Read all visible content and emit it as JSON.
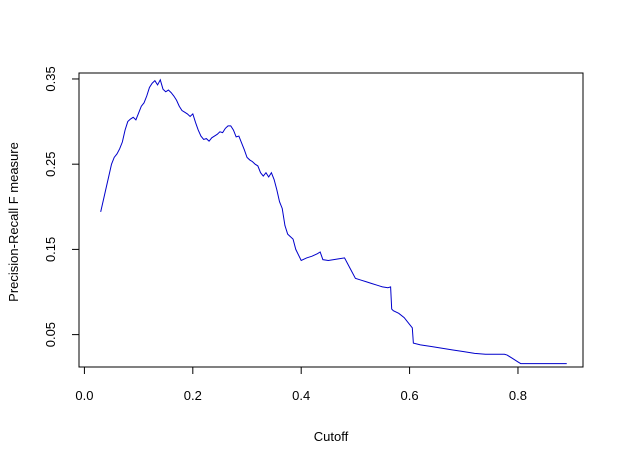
{
  "chart_data": {
    "type": "line",
    "title": "",
    "xlabel": "Cutoff",
    "ylabel": "Precision-Recall F measure",
    "xlim": [
      -0.01,
      0.92
    ],
    "ylim": [
      0.012,
      0.357
    ],
    "x_ticks": [
      {
        "value": 0.0,
        "label": "0.0"
      },
      {
        "value": 0.2,
        "label": "0.2"
      },
      {
        "value": 0.4,
        "label": "0.4"
      },
      {
        "value": 0.6,
        "label": "0.6"
      },
      {
        "value": 0.8,
        "label": "0.8"
      }
    ],
    "y_ticks": [
      {
        "value": 0.05,
        "label": "0.05"
      },
      {
        "value": 0.15,
        "label": "0.15"
      },
      {
        "value": 0.25,
        "label": "0.25"
      },
      {
        "value": 0.35,
        "label": "0.35"
      }
    ],
    "grid": false,
    "series": [
      {
        "color": "#0000cc",
        "x": [
          0.03,
          0.035,
          0.04,
          0.045,
          0.05,
          0.055,
          0.06,
          0.065,
          0.07,
          0.075,
          0.08,
          0.085,
          0.09,
          0.095,
          0.1,
          0.105,
          0.11,
          0.115,
          0.12,
          0.125,
          0.13,
          0.135,
          0.14,
          0.145,
          0.15,
          0.155,
          0.16,
          0.165,
          0.17,
          0.175,
          0.18,
          0.185,
          0.19,
          0.195,
          0.2,
          0.205,
          0.21,
          0.215,
          0.22,
          0.225,
          0.23,
          0.235,
          0.24,
          0.245,
          0.25,
          0.255,
          0.26,
          0.265,
          0.27,
          0.275,
          0.28,
          0.285,
          0.29,
          0.295,
          0.3,
          0.305,
          0.31,
          0.315,
          0.32,
          0.325,
          0.33,
          0.335,
          0.34,
          0.345,
          0.35,
          0.355,
          0.36,
          0.365,
          0.37,
          0.375,
          0.38,
          0.385,
          0.39,
          0.4,
          0.41,
          0.42,
          0.43,
          0.435,
          0.44,
          0.45,
          0.46,
          0.47,
          0.48,
          0.49,
          0.5,
          0.51,
          0.52,
          0.53,
          0.54,
          0.55,
          0.56,
          0.565,
          0.567,
          0.57,
          0.58,
          0.59,
          0.6,
          0.605,
          0.607,
          0.62,
          0.64,
          0.66,
          0.68,
          0.7,
          0.72,
          0.74,
          0.76,
          0.775,
          0.78,
          0.79,
          0.8,
          0.805,
          0.82,
          0.84,
          0.86,
          0.88,
          0.89
        ],
        "y": [
          0.194,
          0.208,
          0.222,
          0.236,
          0.25,
          0.258,
          0.262,
          0.268,
          0.276,
          0.29,
          0.3,
          0.303,
          0.305,
          0.302,
          0.31,
          0.318,
          0.322,
          0.33,
          0.34,
          0.345,
          0.348,
          0.343,
          0.349,
          0.338,
          0.335,
          0.337,
          0.334,
          0.33,
          0.325,
          0.318,
          0.313,
          0.311,
          0.309,
          0.306,
          0.309,
          0.299,
          0.29,
          0.283,
          0.279,
          0.28,
          0.277,
          0.281,
          0.283,
          0.285,
          0.288,
          0.287,
          0.292,
          0.295,
          0.295,
          0.29,
          0.282,
          0.283,
          0.275,
          0.267,
          0.258,
          0.255,
          0.253,
          0.25,
          0.248,
          0.24,
          0.236,
          0.24,
          0.235,
          0.24,
          0.232,
          0.22,
          0.206,
          0.198,
          0.178,
          0.168,
          0.165,
          0.162,
          0.15,
          0.137,
          0.14,
          0.142,
          0.145,
          0.147,
          0.138,
          0.137,
          0.138,
          0.139,
          0.14,
          0.128,
          0.116,
          0.114,
          0.112,
          0.11,
          0.108,
          0.106,
          0.105,
          0.106,
          0.08,
          0.078,
          0.075,
          0.07,
          0.062,
          0.058,
          0.04,
          0.038,
          0.036,
          0.034,
          0.032,
          0.03,
          0.028,
          0.027,
          0.027,
          0.027,
          0.026,
          0.022,
          0.018,
          0.016,
          0.016,
          0.016,
          0.016,
          0.016,
          0.016
        ]
      }
    ]
  }
}
